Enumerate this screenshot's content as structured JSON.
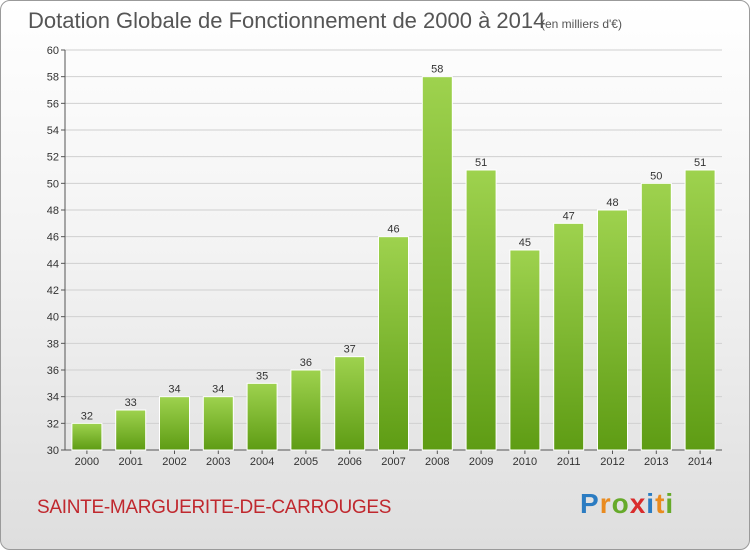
{
  "title": "Dotation Globale de Fonctionnement de 2000 à 2014",
  "subtitle": "(en milliers d'€)",
  "commune": "SAINTE-MARGUERITE-DE-CARROUGES",
  "logo": {
    "text": "Proxiti",
    "letters": [
      {
        "char": "P",
        "color": "#2b7cc2"
      },
      {
        "char": "r",
        "color": "#e98b1f"
      },
      {
        "char": "o",
        "color": "#66aa2a"
      },
      {
        "char": "x",
        "color": "#d92c2c"
      },
      {
        "char": "i",
        "color": "#2b7cc2"
      },
      {
        "char": "t",
        "color": "#e98b1f"
      },
      {
        "char": "i",
        "color": "#66aa2a"
      }
    ]
  },
  "colors": {
    "bar_top": "#9ed24e",
    "bar_bottom": "#5e9c14",
    "grid": "#d0d0d0",
    "title": "#555555",
    "commune": "#c0282e"
  },
  "chart_data": {
    "type": "bar",
    "categories": [
      "2000",
      "2001",
      "2002",
      "2003",
      "2004",
      "2005",
      "2006",
      "2007",
      "2008",
      "2009",
      "2010",
      "2011",
      "2012",
      "2013",
      "2014"
    ],
    "values": [
      32,
      33,
      34,
      34,
      35,
      36,
      37,
      46,
      58,
      51,
      45,
      47,
      48,
      50,
      51
    ],
    "ylim": [
      30,
      60
    ],
    "yticks": [
      30,
      32,
      34,
      36,
      38,
      40,
      42,
      44,
      46,
      48,
      50,
      52,
      54,
      56,
      58,
      60
    ],
    "grid": true,
    "legend": "none"
  }
}
